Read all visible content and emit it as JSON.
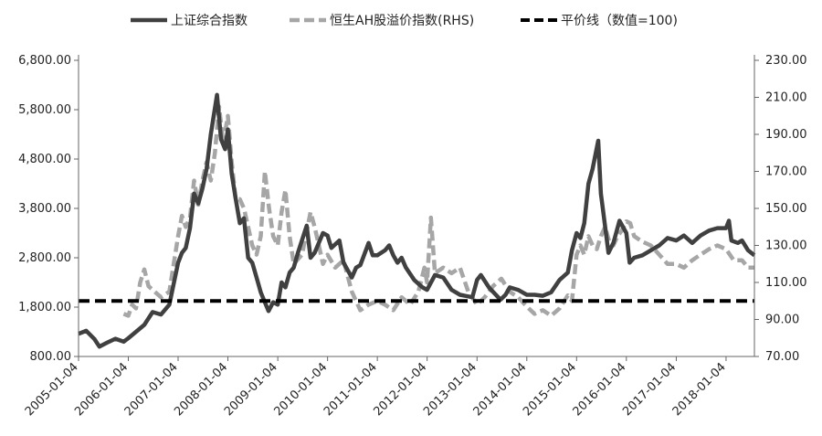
{
  "chart_data": {
    "type": "line",
    "title": "",
    "xlabel": "",
    "ylabel": "",
    "legend_position": "top",
    "grid": false,
    "x_ticks": [
      "2005-01-04",
      "2006-01-04",
      "2007-01-04",
      "2008-01-04",
      "2009-01-04",
      "2010-01-04",
      "2011-01-04",
      "2012-01-04",
      "2013-01-04",
      "2014-01-04",
      "2015-01-04",
      "2016-01-04",
      "2017-01-04",
      "2018-01-04"
    ],
    "x_range": [
      "2005-01-04",
      "2018-07-31"
    ],
    "y_left": {
      "ticks": [
        "800.00",
        "1,800.00",
        "2,800.00",
        "3,800.00",
        "4,800.00",
        "5,800.00",
        "6,800.00"
      ],
      "range": [
        800,
        6800
      ]
    },
    "y_right": {
      "ticks": [
        "70.00",
        "90.00",
        "110.00",
        "130.00",
        "150.00",
        "170.00",
        "190.00",
        "210.00",
        "230.00"
      ],
      "range": [
        70,
        230
      ]
    },
    "series": [
      {
        "name": "上证综合指数",
        "axis": "left",
        "style": "solid",
        "color": "#404040",
        "points": [
          [
            "2005-01-04",
            1260
          ],
          [
            "2005-03-01",
            1320
          ],
          [
            "2005-05-01",
            1150
          ],
          [
            "2005-06-06",
            1000
          ],
          [
            "2005-08-01",
            1080
          ],
          [
            "2005-10-01",
            1160
          ],
          [
            "2005-12-01",
            1100
          ],
          [
            "2006-01-04",
            1170
          ],
          [
            "2006-03-01",
            1300
          ],
          [
            "2006-05-01",
            1440
          ],
          [
            "2006-07-01",
            1700
          ],
          [
            "2006-09-01",
            1650
          ],
          [
            "2006-11-01",
            1850
          ],
          [
            "2007-01-04",
            2700
          ],
          [
            "2007-02-01",
            2900
          ],
          [
            "2007-03-01",
            3000
          ],
          [
            "2007-04-01",
            3400
          ],
          [
            "2007-05-01",
            4100
          ],
          [
            "2007-06-01",
            3900
          ],
          [
            "2007-07-01",
            4200
          ],
          [
            "2007-08-01",
            4600
          ],
          [
            "2007-09-01",
            5300
          ],
          [
            "2007-10-16",
            6100
          ],
          [
            "2007-11-15",
            5200
          ],
          [
            "2007-12-15",
            5000
          ],
          [
            "2008-01-04",
            5400
          ],
          [
            "2008-02-01",
            4500
          ],
          [
            "2008-03-01",
            4000
          ],
          [
            "2008-04-01",
            3500
          ],
          [
            "2008-05-01",
            3600
          ],
          [
            "2008-06-01",
            2800
          ],
          [
            "2008-07-01",
            2700
          ],
          [
            "2008-08-01",
            2400
          ],
          [
            "2008-09-01",
            2100
          ],
          [
            "2008-10-28",
            1720
          ],
          [
            "2008-12-01",
            1900
          ],
          [
            "2009-01-04",
            1850
          ],
          [
            "2009-02-01",
            2300
          ],
          [
            "2009-03-01",
            2200
          ],
          [
            "2009-04-01",
            2500
          ],
          [
            "2009-05-01",
            2600
          ],
          [
            "2009-06-01",
            2900
          ],
          [
            "2009-08-04",
            3450
          ],
          [
            "2009-09-01",
            2800
          ],
          [
            "2009-10-01",
            2900
          ],
          [
            "2009-12-01",
            3300
          ],
          [
            "2010-01-04",
            3250
          ],
          [
            "2010-02-01",
            3000
          ],
          [
            "2010-04-01",
            3150
          ],
          [
            "2010-05-01",
            2700
          ],
          [
            "2010-07-01",
            2400
          ],
          [
            "2010-08-01",
            2600
          ],
          [
            "2010-09-01",
            2650
          ],
          [
            "2010-11-01",
            3100
          ],
          [
            "2010-12-01",
            2850
          ],
          [
            "2011-01-04",
            2850
          ],
          [
            "2011-03-01",
            2950
          ],
          [
            "2011-04-01",
            3050
          ],
          [
            "2011-05-01",
            2850
          ],
          [
            "2011-06-01",
            2700
          ],
          [
            "2011-07-01",
            2800
          ],
          [
            "2011-08-01",
            2600
          ],
          [
            "2011-10-01",
            2350
          ],
          [
            "2011-12-01",
            2200
          ],
          [
            "2012-01-04",
            2150
          ],
          [
            "2012-03-01",
            2450
          ],
          [
            "2012-05-01",
            2400
          ],
          [
            "2012-07-01",
            2150
          ],
          [
            "2012-09-01",
            2050
          ],
          [
            "2012-12-01",
            2000
          ],
          [
            "2013-01-04",
            2350
          ],
          [
            "2013-02-01",
            2450
          ],
          [
            "2013-04-01",
            2200
          ],
          [
            "2013-06-25",
            1950
          ],
          [
            "2013-08-01",
            2050
          ],
          [
            "2013-09-01",
            2200
          ],
          [
            "2013-11-01",
            2150
          ],
          [
            "2014-01-04",
            2050
          ],
          [
            "2014-03-01",
            2050
          ],
          [
            "2014-05-01",
            2030
          ],
          [
            "2014-07-01",
            2100
          ],
          [
            "2014-09-01",
            2350
          ],
          [
            "2014-11-01",
            2500
          ],
          [
            "2014-12-01",
            2950
          ],
          [
            "2015-01-04",
            3300
          ],
          [
            "2015-02-01",
            3200
          ],
          [
            "2015-03-01",
            3500
          ],
          [
            "2015-04-01",
            4300
          ],
          [
            "2015-05-01",
            4600
          ],
          [
            "2015-06-12",
            5170
          ],
          [
            "2015-07-01",
            4100
          ],
          [
            "2015-07-15",
            3800
          ],
          [
            "2015-08-26",
            2900
          ],
          [
            "2015-10-01",
            3100
          ],
          [
            "2015-11-15",
            3550
          ],
          [
            "2016-01-04",
            3300
          ],
          [
            "2016-01-28",
            2700
          ],
          [
            "2016-03-01",
            2800
          ],
          [
            "2016-05-01",
            2850
          ],
          [
            "2016-07-01",
            2950
          ],
          [
            "2016-09-01",
            3050
          ],
          [
            "2016-11-01",
            3200
          ],
          [
            "2017-01-04",
            3150
          ],
          [
            "2017-03-01",
            3250
          ],
          [
            "2017-05-01",
            3100
          ],
          [
            "2017-07-01",
            3250
          ],
          [
            "2017-09-01",
            3350
          ],
          [
            "2017-11-01",
            3400
          ],
          [
            "2018-01-04",
            3400
          ],
          [
            "2018-01-25",
            3550
          ],
          [
            "2018-02-12",
            3150
          ],
          [
            "2018-04-01",
            3100
          ],
          [
            "2018-05-01",
            3150
          ],
          [
            "2018-06-15",
            2950
          ],
          [
            "2018-07-31",
            2850
          ]
        ]
      },
      {
        "name": "恒生AH股溢价指数(RHS)",
        "axis": "right",
        "style": "dashed",
        "color": "#a6a6a6",
        "points": [
          [
            "2005-12-01",
            93
          ],
          [
            "2006-01-04",
            92
          ],
          [
            "2006-02-01",
            98
          ],
          [
            "2006-03-01",
            96
          ],
          [
            "2006-04-01",
            110
          ],
          [
            "2006-05-01",
            117
          ],
          [
            "2006-06-01",
            108
          ],
          [
            "2006-07-01",
            106
          ],
          [
            "2006-09-01",
            102
          ],
          [
            "2006-11-01",
            105
          ],
          [
            "2007-01-04",
            135
          ],
          [
            "2007-02-01",
            146
          ],
          [
            "2007-03-01",
            140
          ],
          [
            "2007-04-01",
            145
          ],
          [
            "2007-05-01",
            165
          ],
          [
            "2007-06-01",
            152
          ],
          [
            "2007-07-01",
            165
          ],
          [
            "2007-08-01",
            175
          ],
          [
            "2007-09-01",
            165
          ],
          [
            "2007-10-01",
            180
          ],
          [
            "2007-11-01",
            205
          ],
          [
            "2007-12-01",
            185
          ],
          [
            "2008-01-04",
            200
          ],
          [
            "2008-02-01",
            175
          ],
          [
            "2008-03-01",
            155
          ],
          [
            "2008-04-01",
            155
          ],
          [
            "2008-05-01",
            150
          ],
          [
            "2008-06-01",
            140
          ],
          [
            "2008-07-01",
            130
          ],
          [
            "2008-08-01",
            125
          ],
          [
            "2008-09-01",
            135
          ],
          [
            "2008-10-01",
            170
          ],
          [
            "2008-11-01",
            150
          ],
          [
            "2008-12-01",
            135
          ],
          [
            "2009-01-04",
            130
          ],
          [
            "2009-02-01",
            148
          ],
          [
            "2009-03-01",
            160
          ],
          [
            "2009-04-01",
            135
          ],
          [
            "2009-05-01",
            120
          ],
          [
            "2009-07-01",
            125
          ],
          [
            "2009-09-01",
            148
          ],
          [
            "2009-10-01",
            140
          ],
          [
            "2009-11-01",
            130
          ],
          [
            "2009-12-01",
            120
          ],
          [
            "2010-01-04",
            125
          ],
          [
            "2010-03-01",
            118
          ],
          [
            "2010-05-01",
            122
          ],
          [
            "2010-07-01",
            105
          ],
          [
            "2010-09-01",
            95
          ],
          [
            "2010-11-01",
            98
          ],
          [
            "2011-01-04",
            100
          ],
          [
            "2011-03-01",
            98
          ],
          [
            "2011-05-01",
            95
          ],
          [
            "2011-07-01",
            102
          ],
          [
            "2011-09-01",
            98
          ],
          [
            "2011-11-01",
            105
          ],
          [
            "2011-12-15",
            118
          ],
          [
            "2012-01-04",
            110
          ],
          [
            "2012-02-01",
            145
          ],
          [
            "2012-03-01",
            115
          ],
          [
            "2012-05-01",
            118
          ],
          [
            "2012-07-01",
            115
          ],
          [
            "2012-09-01",
            118
          ],
          [
            "2012-11-01",
            105
          ],
          [
            "2013-01-04",
            98
          ],
          [
            "2013-03-01",
            102
          ],
          [
            "2013-05-01",
            108
          ],
          [
            "2013-07-01",
            112
          ],
          [
            "2013-09-01",
            105
          ],
          [
            "2013-11-01",
            102
          ],
          [
            "2014-01-04",
            97
          ],
          [
            "2014-03-01",
            93
          ],
          [
            "2014-05-01",
            95
          ],
          [
            "2014-07-01",
            92
          ],
          [
            "2014-09-01",
            96
          ],
          [
            "2014-11-01",
            103
          ],
          [
            "2014-12-01",
            100
          ],
          [
            "2015-01-04",
            125
          ],
          [
            "2015-02-01",
            130
          ],
          [
            "2015-03-01",
            125
          ],
          [
            "2015-04-01",
            135
          ],
          [
            "2015-05-01",
            130
          ],
          [
            "2015-06-01",
            128
          ],
          [
            "2015-07-01",
            135
          ],
          [
            "2015-08-01",
            140
          ],
          [
            "2015-09-01",
            132
          ],
          [
            "2015-10-01",
            130
          ],
          [
            "2015-11-01",
            135
          ],
          [
            "2015-12-01",
            138
          ],
          [
            "2016-01-04",
            143
          ],
          [
            "2016-02-01",
            142
          ],
          [
            "2016-03-01",
            135
          ],
          [
            "2016-05-01",
            132
          ],
          [
            "2016-07-01",
            130
          ],
          [
            "2016-09-01",
            125
          ],
          [
            "2016-11-01",
            120
          ],
          [
            "2017-01-04",
            120
          ],
          [
            "2017-03-01",
            118
          ],
          [
            "2017-05-01",
            122
          ],
          [
            "2017-07-01",
            125
          ],
          [
            "2017-09-01",
            128
          ],
          [
            "2017-11-01",
            130
          ],
          [
            "2018-01-04",
            128
          ],
          [
            "2018-02-01",
            125
          ],
          [
            "2018-03-01",
            122
          ],
          [
            "2018-05-01",
            122
          ],
          [
            "2018-06-15",
            118
          ],
          [
            "2018-07-31",
            118
          ]
        ]
      },
      {
        "name": "平价线（数值=100)",
        "axis": "right",
        "style": "dashed-thick",
        "color": "#000000",
        "points": [
          [
            "2005-01-04",
            100
          ],
          [
            "2018-07-31",
            100
          ]
        ]
      }
    ]
  }
}
